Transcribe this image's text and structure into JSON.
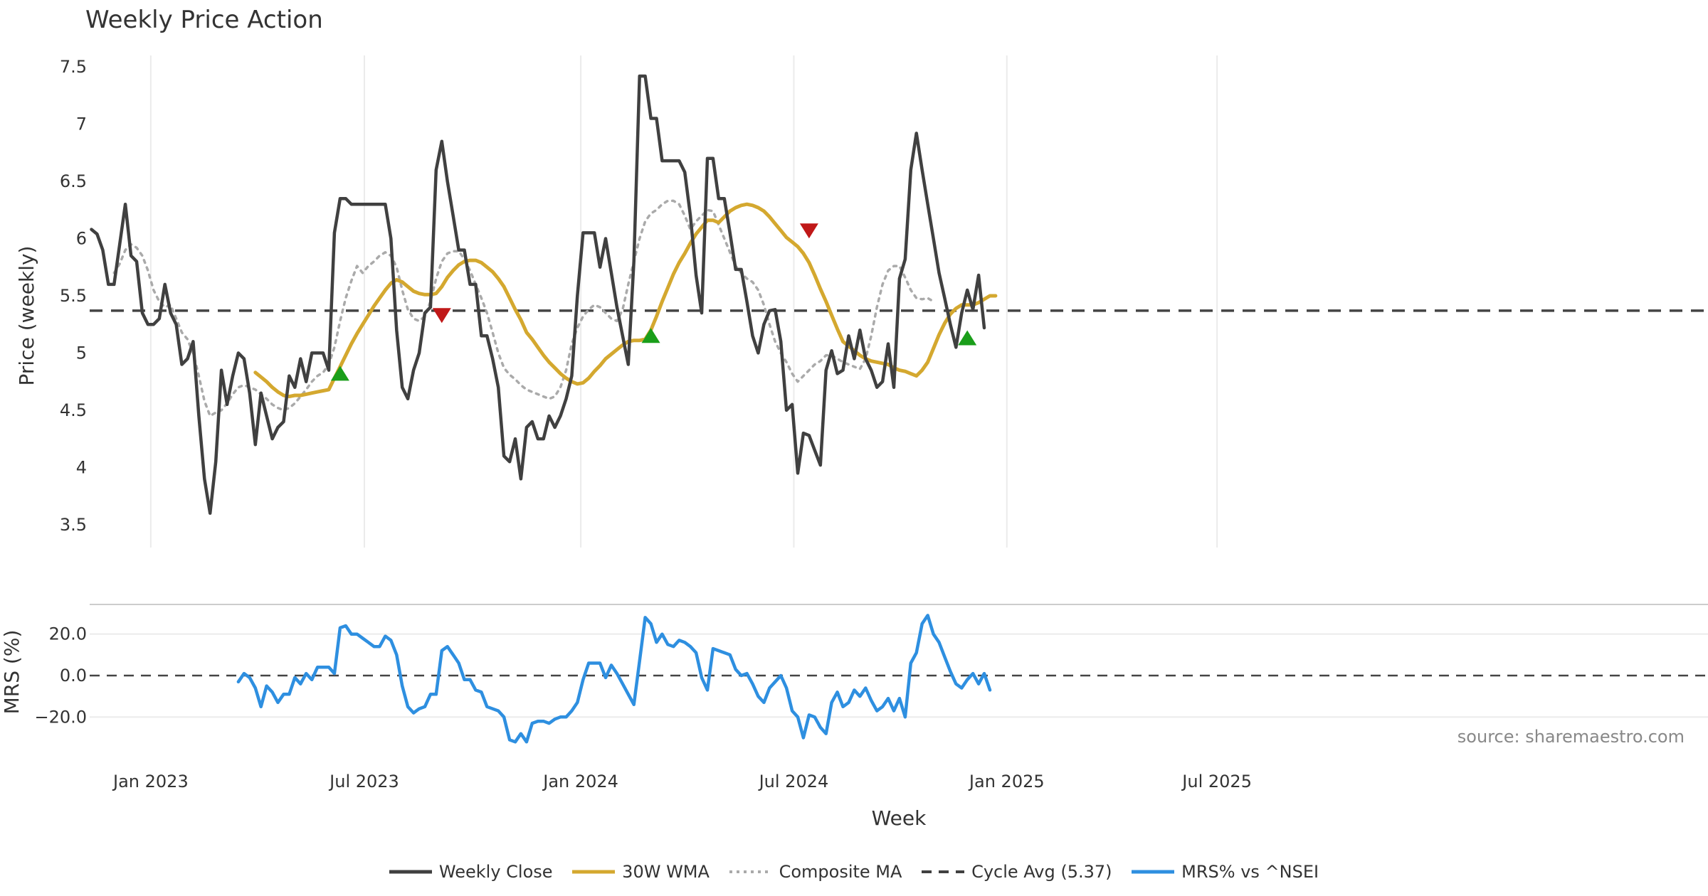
{
  "chart_data": {
    "type": "line",
    "title": "Weekly Price Action",
    "source_note": "source: sharemaestro.com",
    "xlabel": "Week",
    "x_ticks": [
      "Jan 2023",
      "Jul 2023",
      "Jan 2024",
      "Jul 2024",
      "Jan 2025",
      "Jul 2025"
    ],
    "price_panel": {
      "ylabel": "Price (weekly)",
      "ylim": [
        3.3,
        7.6
      ],
      "y_ticks": [
        "3.5",
        "4",
        "4.5",
        "5",
        "5.5",
        "6",
        "6.5",
        "7",
        "7.5"
      ],
      "cycle_avg": 5.37,
      "series": [
        {
          "name": "Weekly Close",
          "color": "#404040",
          "start_week": 0,
          "values": [
            6.08,
            6.04,
            5.9,
            5.6,
            5.6,
            5.95,
            6.3,
            5.85,
            5.8,
            5.35,
            5.25,
            5.25,
            5.3,
            5.6,
            5.35,
            5.25,
            4.9,
            4.95,
            5.1,
            4.45,
            3.9,
            3.6,
            4.05,
            4.85,
            4.55,
            4.8,
            5.0,
            4.95,
            4.65,
            4.2,
            4.65,
            4.45,
            4.25,
            4.35,
            4.4,
            4.8,
            4.7,
            4.95,
            4.75,
            5.0,
            5.0,
            5.0,
            4.85,
            6.05,
            6.35,
            6.35,
            6.3,
            6.3,
            6.3,
            6.3,
            6.3,
            6.3,
            6.3,
            6.0,
            5.2,
            4.7,
            4.6,
            4.85,
            5.0,
            5.35,
            5.4,
            6.6,
            6.85,
            6.5,
            6.2,
            5.9,
            5.9,
            5.6,
            5.6,
            5.15,
            5.15,
            4.95,
            4.7,
            4.1,
            4.05,
            4.25,
            3.9,
            4.35,
            4.4,
            4.25,
            4.25,
            4.45,
            4.35,
            4.45,
            4.6,
            4.8,
            5.5,
            6.05,
            6.05,
            6.05,
            5.75,
            6.0,
            5.7,
            5.4,
            5.15,
            4.9,
            5.8,
            7.42,
            7.42,
            7.05,
            7.05,
            6.68,
            6.68,
            6.68,
            6.68,
            6.58,
            6.2,
            5.68,
            5.35,
            6.7,
            6.7,
            6.35,
            6.35,
            6.05,
            5.73,
            5.73,
            5.45,
            5.15,
            5.0,
            5.25,
            5.37,
            5.38,
            5.1,
            4.5,
            4.55,
            3.95,
            4.3,
            4.28,
            4.15,
            4.02,
            4.85,
            5.02,
            4.82,
            4.85,
            5.15,
            4.95,
            5.2,
            4.95,
            4.85,
            4.7,
            4.75,
            5.08,
            4.7,
            5.65,
            5.82,
            6.6,
            6.92,
            6.6,
            6.3,
            6.0,
            5.7,
            5.48,
            5.25,
            5.05,
            5.35,
            5.55,
            5.38,
            5.68,
            5.22
          ]
        },
        {
          "name": "30W WMA",
          "color": "#D4A82F",
          "start_week": 29,
          "values": [
            4.83,
            4.79,
            4.75,
            4.7,
            4.66,
            4.63,
            4.62,
            4.63,
            4.63,
            4.64,
            4.65,
            4.66,
            4.67,
            4.68,
            4.78,
            4.88,
            4.98,
            5.08,
            5.17,
            5.25,
            5.33,
            5.41,
            5.48,
            5.55,
            5.61,
            5.64,
            5.62,
            5.58,
            5.54,
            5.52,
            5.51,
            5.51,
            5.52,
            5.58,
            5.66,
            5.72,
            5.77,
            5.8,
            5.81,
            5.81,
            5.79,
            5.75,
            5.71,
            5.65,
            5.58,
            5.48,
            5.38,
            5.29,
            5.18,
            5.12,
            5.05,
            4.98,
            4.92,
            4.87,
            4.82,
            4.78,
            4.75,
            4.73,
            4.74,
            4.78,
            4.84,
            4.89,
            4.95,
            4.99,
            5.03,
            5.07,
            5.1,
            5.11,
            5.11,
            5.12,
            5.2,
            5.32,
            5.45,
            5.57,
            5.69,
            5.79,
            5.87,
            5.96,
            6.04,
            6.1,
            6.16,
            6.16,
            6.14,
            6.19,
            6.24,
            6.27,
            6.29,
            6.3,
            6.29,
            6.27,
            6.24,
            6.19,
            6.13,
            6.07,
            6.01,
            5.97,
            5.93,
            5.87,
            5.79,
            5.68,
            5.56,
            5.45,
            5.33,
            5.21,
            5.1,
            5.06,
            5.02,
            4.98,
            4.95,
            4.93,
            4.92,
            4.91,
            4.9,
            4.87,
            4.85,
            4.84,
            4.82,
            4.8,
            4.85,
            4.92,
            5.04,
            5.16,
            5.26,
            5.34,
            5.39,
            5.42,
            5.42,
            5.42,
            5.44,
            5.47,
            5.5,
            5.5
          ]
        },
        {
          "name": "Composite MA",
          "color": "#AAAAAA",
          "start_week": 4,
          "values": [
            5.7,
            5.78,
            5.9,
            5.95,
            5.92,
            5.85,
            5.72,
            5.55,
            5.45,
            5.4,
            5.42,
            5.3,
            5.18,
            5.12,
            5.0,
            4.8,
            4.58,
            4.45,
            4.48,
            4.5,
            4.56,
            4.64,
            4.7,
            4.72,
            4.7,
            4.68,
            4.64,
            4.6,
            4.55,
            4.52,
            4.5,
            4.52,
            4.56,
            4.62,
            4.68,
            4.75,
            4.8,
            4.83,
            4.9,
            5.05,
            5.28,
            5.48,
            5.63,
            5.76,
            5.7,
            5.76,
            5.8,
            5.85,
            5.88,
            5.85,
            5.75,
            5.55,
            5.38,
            5.3,
            5.28,
            5.32,
            5.45,
            5.65,
            5.8,
            5.87,
            5.89,
            5.89,
            5.82,
            5.72,
            5.6,
            5.48,
            5.35,
            5.18,
            5.0,
            4.87,
            4.81,
            4.77,
            4.72,
            4.68,
            4.66,
            4.64,
            4.62,
            4.6,
            4.62,
            4.7,
            4.85,
            5.08,
            5.22,
            5.32,
            5.38,
            5.42,
            5.4,
            5.35,
            5.3,
            5.28,
            5.38,
            5.6,
            5.8,
            6.0,
            6.15,
            6.22,
            6.25,
            6.3,
            6.33,
            6.33,
            6.3,
            6.2,
            6.08,
            6.15,
            6.2,
            6.25,
            6.24,
            6.12,
            6.0,
            5.88,
            5.76,
            5.7,
            5.65,
            5.62,
            5.55,
            5.42,
            5.25,
            5.1,
            5.0,
            4.92,
            4.82,
            4.75,
            4.8,
            4.85,
            4.9,
            4.93,
            4.98,
            4.98,
            4.95,
            4.92,
            4.9,
            4.88,
            4.86,
            4.95,
            5.15,
            5.4,
            5.6,
            5.72,
            5.76,
            5.76,
            5.66,
            5.55,
            5.48,
            5.47,
            5.48,
            5.45
          ]
        }
      ],
      "markers": [
        {
          "type": "buy",
          "week": 44,
          "value": 4.82,
          "color": "#1A9E1A"
        },
        {
          "type": "sell",
          "week": 62,
          "value": 5.33,
          "color": "#C01818"
        },
        {
          "type": "buy",
          "week": 99,
          "value": 5.15,
          "color": "#1A9E1A"
        },
        {
          "type": "sell",
          "week": 127,
          "value": 6.07,
          "color": "#C01818"
        },
        {
          "type": "buy",
          "week": 155,
          "value": 5.13,
          "color": "#1A9E1A"
        }
      ]
    },
    "mrs_panel": {
      "ylabel": "MRS (%)",
      "ylim": [
        -36,
        36
      ],
      "y_ticks": [
        "20.0",
        "0.0",
        "−20.0"
      ],
      "series": [
        {
          "name": "MRS% vs ^NSEI",
          "color": "#2E8FE0",
          "start_week": 26,
          "values": [
            -3,
            1,
            -1,
            -6,
            -15,
            -5,
            -8,
            -13,
            -9,
            -9,
            -1,
            -4,
            1,
            -2,
            4,
            4,
            4,
            1,
            23,
            24,
            20,
            20,
            18,
            16,
            14,
            14,
            19,
            17,
            10,
            -5,
            -15,
            -18,
            -16,
            -15,
            -9,
            -9,
            12,
            14,
            10,
            6,
            -2,
            -2,
            -7,
            -8,
            -15,
            -16,
            -17,
            -20,
            -31,
            -32,
            -28,
            -32,
            -23,
            -22,
            -22,
            -23,
            -21,
            -20,
            -20,
            -17,
            -13,
            -2,
            6,
            6,
            6,
            -1,
            5,
            1,
            -4,
            -9,
            -14,
            7,
            28,
            25,
            16,
            20,
            15,
            14,
            17,
            16,
            14,
            11,
            -1,
            -7,
            13,
            12,
            11,
            10,
            3,
            0,
            1,
            -4,
            -10,
            -13,
            -6,
            -3,
            0,
            -6,
            -17,
            -20,
            -30,
            -19,
            -20,
            -25,
            -28,
            -13,
            -8,
            -15,
            -13,
            -7,
            -10,
            -6,
            -12,
            -17,
            -15,
            -11,
            -17,
            -11,
            -20,
            6,
            11,
            25,
            29,
            20,
            16,
            9,
            2,
            -4,
            -6,
            -2,
            1,
            -4,
            1,
            -7
          ]
        }
      ],
      "source_note": "source: sharemaestro.com"
    },
    "legend": {
      "placement": "bottom-center",
      "entries": [
        {
          "label": "Weekly Close",
          "color": "#404040",
          "style": "solid"
        },
        {
          "label": "30W WMA",
          "color": "#D4A82F",
          "style": "solid"
        },
        {
          "label": "Composite MA",
          "color": "#AAAAAA",
          "style": "dotted"
        },
        {
          "label": "Cycle Avg (5.37)",
          "color": "#404040",
          "style": "dashed"
        },
        {
          "label": "MRS% vs ^NSEI",
          "color": "#2E8FE0",
          "style": "solid"
        }
      ]
    }
  }
}
